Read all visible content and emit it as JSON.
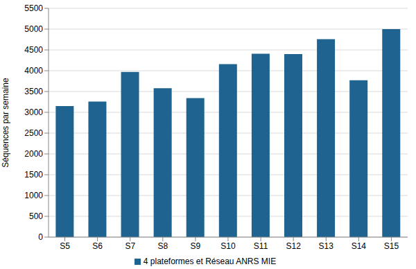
{
  "chart_data": {
    "type": "bar",
    "y_label": "Séquences par semaine",
    "categories": [
      "S5",
      "S6",
      "S7",
      "S8",
      "S9",
      "S10",
      "S11",
      "S12",
      "S13",
      "S14",
      "S15"
    ],
    "series": [
      {
        "name": "4 plateformes et Réseau ANRS MIE",
        "color": "#1f6490",
        "values": [
          3150,
          3260,
          3970,
          3580,
          3340,
          4160,
          4410,
          4400,
          4760,
          3770,
          5000
        ]
      }
    ],
    "ylim": [
      0,
      5500
    ],
    "yticks": [
      0,
      500,
      1000,
      1500,
      2000,
      2500,
      3000,
      3500,
      4000,
      4500,
      5000,
      5500
    ],
    "grid": true,
    "legend": "bottom"
  }
}
